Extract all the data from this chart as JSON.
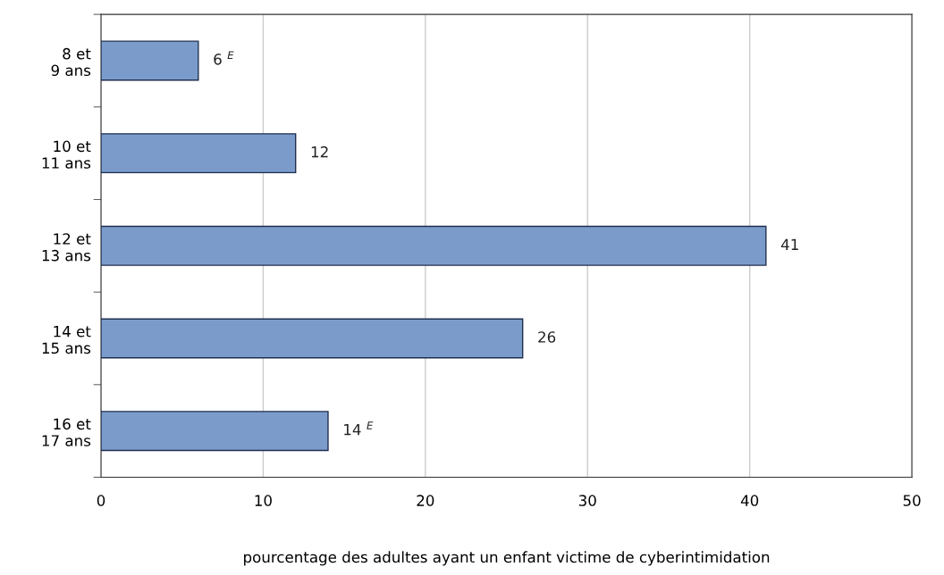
{
  "chart_data": {
    "type": "bar",
    "orientation": "horizontal",
    "categories": [
      "8 et\n9 ans",
      "10 et\n11 ans",
      "12 et\n13 ans",
      "14 et\n15 ans",
      "16 et\n17 ans"
    ],
    "values": [
      6,
      12,
      41,
      26,
      14
    ],
    "value_labels": [
      "6 $^{E}$",
      "12",
      "41",
      "26",
      "14 $^{E}$"
    ],
    "color": "#7b9ccb",
    "xlim": [
      0,
      50
    ],
    "xticks": [
      0,
      10,
      20,
      30,
      40,
      50
    ],
    "xlabel": "pourcentage des adultes ayant un enfant victime de cyberintimidation",
    "grid": "x"
  }
}
